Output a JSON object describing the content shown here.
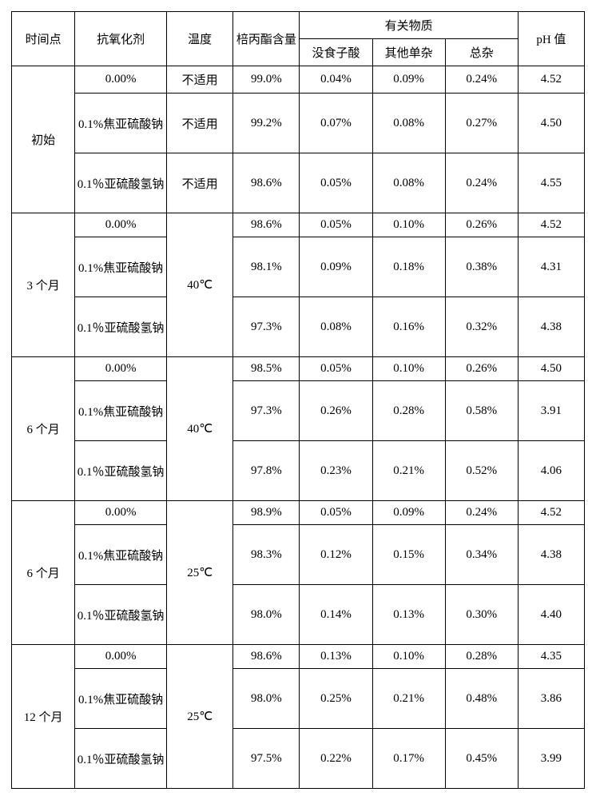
{
  "table": {
    "header": {
      "time": "时间点",
      "antioxidant": "抗氧化剂",
      "temperature": "温度",
      "bbz_content": "棓丙酯含量",
      "related_substances": "有关物质",
      "gallic_acid": "没食子酸",
      "other_single": "其他单杂",
      "total_impurity": "总杂",
      "ph": "pH 值"
    },
    "groups": [
      {
        "time": "初始",
        "temp": "不适用",
        "temp_merged": false,
        "rows": [
          {
            "anti": "0.00%",
            "temp": "不适用",
            "bbz": "99.0%",
            "ga": "0.04%",
            "other": "0.09%",
            "total": "0.24%",
            "ph": "4.52"
          },
          {
            "anti": "0.1%焦亚硫酸钠",
            "temp": "不适用",
            "bbz": "99.2%",
            "ga": "0.07%",
            "other": "0.08%",
            "total": "0.27%",
            "ph": "4.50"
          },
          {
            "anti": "0.1％亚硫酸氢钠",
            "temp": "不适用",
            "bbz": "98.6%",
            "ga": "0.05%",
            "other": "0.08%",
            "total": "0.24%",
            "ph": "4.55"
          }
        ]
      },
      {
        "time": "3 个月",
        "temp": "40℃",
        "temp_merged": true,
        "rows": [
          {
            "anti": "0.00%",
            "bbz": "98.6%",
            "ga": "0.05%",
            "other": "0.10%",
            "total": "0.26%",
            "ph": "4.52"
          },
          {
            "anti": "0.1%焦亚硫酸钠",
            "bbz": "98.1%",
            "ga": "0.09%",
            "other": "0.18%",
            "total": "0.38%",
            "ph": "4.31"
          },
          {
            "anti": "0.1％亚硫酸氢钠",
            "bbz": "97.3%",
            "ga": "0.08%",
            "other": "0.16%",
            "total": "0.32%",
            "ph": "4.38"
          }
        ]
      },
      {
        "time": "6 个月",
        "temp": "40℃",
        "temp_merged": true,
        "rows": [
          {
            "anti": "0.00%",
            "bbz": "98.5%",
            "ga": "0.05%",
            "other": "0.10%",
            "total": "0.26%",
            "ph": "4.50"
          },
          {
            "anti": "0.1%焦亚硫酸钠",
            "bbz": "97.3%",
            "ga": "0.26%",
            "other": "0.28%",
            "total": "0.58%",
            "ph": "3.91"
          },
          {
            "anti": "0.1％亚硫酸氢钠",
            "bbz": "97.8%",
            "ga": "0.23%",
            "other": "0.21%",
            "total": "0.52%",
            "ph": "4.06"
          }
        ]
      },
      {
        "time": "6 个月",
        "temp": "25℃",
        "temp_merged": true,
        "rows": [
          {
            "anti": "0.00%",
            "bbz": "98.9%",
            "ga": "0.05%",
            "other": "0.09%",
            "total": "0.24%",
            "ph": "4.52"
          },
          {
            "anti": "0.1%焦亚硫酸钠",
            "bbz": "98.3%",
            "ga": "0.12%",
            "other": "0.15%",
            "total": "0.34%",
            "ph": "4.38"
          },
          {
            "anti": "0.1％亚硫酸氢钠",
            "bbz": "98.0%",
            "ga": "0.14%",
            "other": "0.13%",
            "total": "0.30%",
            "ph": "4.40"
          }
        ]
      },
      {
        "time": "12 个月",
        "temp": "25℃",
        "temp_merged": true,
        "rows": [
          {
            "anti": "0.00%",
            "bbz": "98.6%",
            "ga": "0.13%",
            "other": "0.10%",
            "total": "0.28%",
            "ph": "4.35"
          },
          {
            "anti": "0.1%焦亚硫酸钠",
            "bbz": "98.0%",
            "ga": "0.25%",
            "other": "0.21%",
            "total": "0.48%",
            "ph": "3.86"
          },
          {
            "anti": "0.1％亚硫酸氢钠",
            "bbz": "97.5%",
            "ga": "0.22%",
            "other": "0.17%",
            "total": "0.45%",
            "ph": "3.99"
          }
        ]
      }
    ]
  },
  "style": {
    "border_color": "#000000",
    "background_color": "#ffffff",
    "text_color": "#000000",
    "font_size_pt": 11,
    "font_family": "SimSun"
  }
}
